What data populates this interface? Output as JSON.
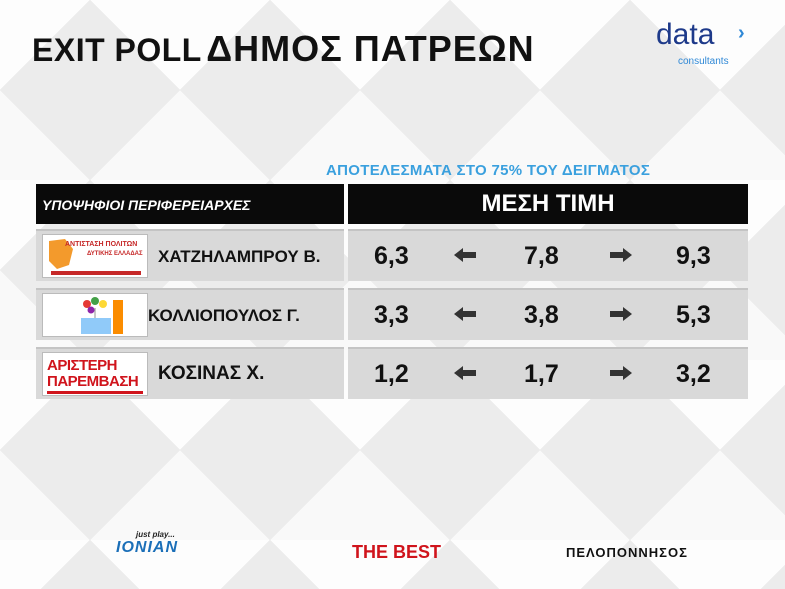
{
  "header": {
    "title_part1": "EXIT POLL",
    "title_part2": "ΔΗΜΟΣ ΠΑΤΡΕΩΝ",
    "logo_word": "data",
    "logo_sub": "consultants"
  },
  "subtitle": "ΑΠΟΤΕΛΕΣΜΑΤΑ ΣΤΟ 75% ΤΟΥ ΔΕΙΓΜΑΤΟΣ",
  "table": {
    "col_candidates": "ΥΠΟΨΗΦΙΟΙ ΠΕΡΙΦΕΡΕΙΑΡΧΕΣ",
    "col_mean": "ΜΕΣΗ ΤΙΜΗ",
    "rows": [
      {
        "logo_text_1": "ΑΝΤΙΣΤΑΣΗ ΠΟΛΙΤΩΝ",
        "logo_text_2": "ΔΥΤΙΚΗΣ ΕΛΛΑΔΑΣ",
        "name": "ΧΑΤΖΗΛΑΜΠΡΟΥ Β.",
        "low": "6,3",
        "mean": "7,8",
        "high": "9,3"
      },
      {
        "logo_text_1": "",
        "logo_text_2": "",
        "name": "ΚΟΛΛΙΟΠΟΥΛΟΣ Γ.",
        "low": "3,3",
        "mean": "3,8",
        "high": "5,3"
      },
      {
        "logo_text_1": "ΑΡΙΣΤΕΡΗ",
        "logo_text_2": "ΠΑΡΕΜΒΑΣΗ",
        "name": "ΚΟΣΙΝΑΣ Χ.",
        "low": "1,2",
        "mean": "1,7",
        "high": "3,2"
      }
    ]
  },
  "footer": {
    "ionian_small": "just play...",
    "ionian": "IONIAN",
    "thebest": "THE BEST",
    "peloponnisos": "ΠΕΛΟΠΟΝΝΗΣΟΣ"
  },
  "colors": {
    "accent_blue": "#3aa0de",
    "header_black": "#0a0a0a",
    "row_gray": "#d9d9d9",
    "thebest_red": "#d0141c",
    "ionian_blue": "#1b6fb8"
  },
  "icons": {
    "left_arrow": "arrow-left-icon",
    "right_arrow": "arrow-right-icon"
  }
}
